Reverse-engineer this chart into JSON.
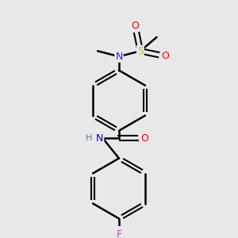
{
  "bg_color": "#e8e8e8",
  "bond_color": "#000000",
  "bond_width": 1.8,
  "atom_colors": {
    "N_amide": "#0000ee",
    "N_sulfonyl": "#2222ff",
    "O": "#ff0000",
    "S": "#cccc00",
    "F": "#cc44cc",
    "H": "#448888"
  },
  "figsize": [
    3.0,
    3.0
  ],
  "dpi": 100
}
